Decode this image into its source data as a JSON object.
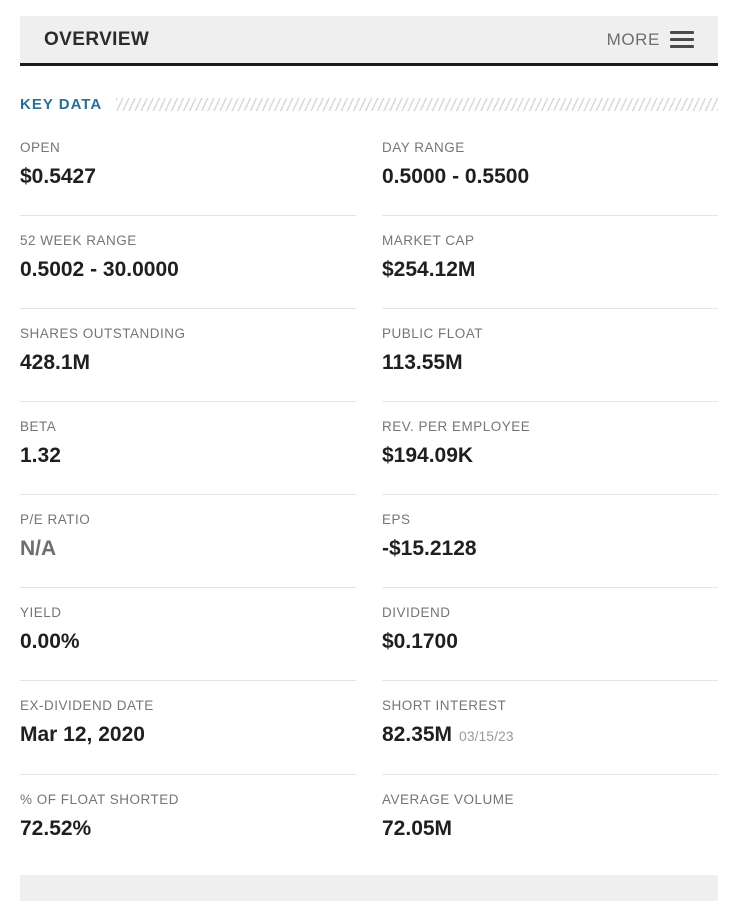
{
  "header": {
    "title": "OVERVIEW",
    "more_label": "MORE"
  },
  "key_data": {
    "title": "KEY DATA",
    "items": [
      {
        "label": "OPEN",
        "value": "$0.5427"
      },
      {
        "label": "DAY RANGE",
        "value": "0.5000 - 0.5500"
      },
      {
        "label": "52 WEEK RANGE",
        "value": "0.5002 - 30.0000"
      },
      {
        "label": "MARKET CAP",
        "value": "$254.12M"
      },
      {
        "label": "SHARES OUTSTANDING",
        "value": "428.1M"
      },
      {
        "label": "PUBLIC FLOAT",
        "value": "113.55M"
      },
      {
        "label": "BETA",
        "value": "1.32"
      },
      {
        "label": "REV. PER EMPLOYEE",
        "value": "$194.09K"
      },
      {
        "label": "P/E RATIO",
        "value": "N/A"
      },
      {
        "label": "EPS",
        "value": "-$15.2128"
      },
      {
        "label": "YIELD",
        "value": "0.00%"
      },
      {
        "label": "DIVIDEND",
        "value": "$0.1700"
      },
      {
        "label": "EX-DIVIDEND DATE",
        "value": "Mar 12, 2020"
      },
      {
        "label": "SHORT INTEREST",
        "value": "82.35M",
        "note": "03/15/23"
      },
      {
        "label": "% OF FLOAT SHORTED",
        "value": "72.52%"
      },
      {
        "label": "AVERAGE VOLUME",
        "value": "72.05M"
      }
    ]
  },
  "colors": {
    "accent_blue": "#2c6e96",
    "value_text": "#1f1f1f",
    "label_text": "#757575",
    "header_bg": "#efefef"
  }
}
